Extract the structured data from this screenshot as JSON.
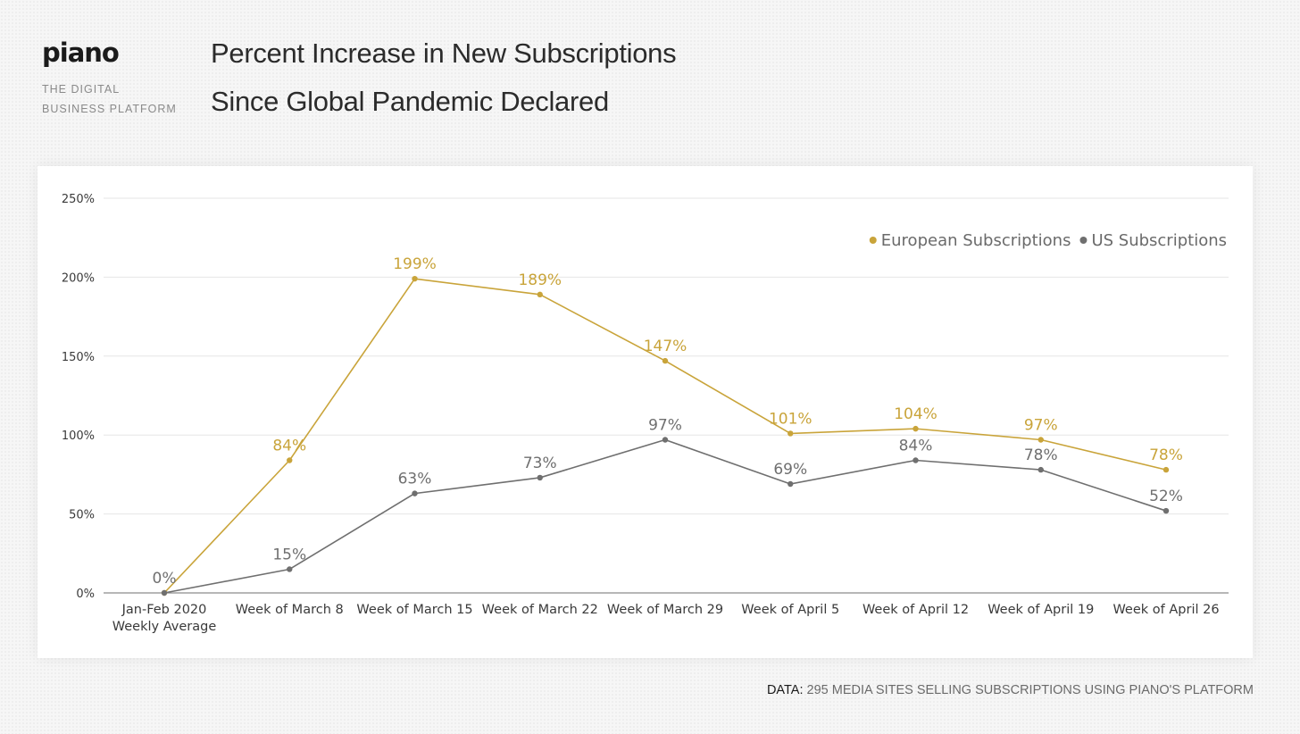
{
  "brand": {
    "logo": "piano",
    "tagline_line1": "THE DIGITAL",
    "tagline_line2": "BUSINESS PLATFORM"
  },
  "title_line1": "Percent Increase in New Subscriptions",
  "title_line2": "Since Global Pandemic Declared",
  "footer": {
    "label": "DATA:",
    "text": "295 MEDIA SITES SELLING SUBSCRIPTIONS USING PIANO'S PLATFORM"
  },
  "chart_data": {
    "type": "line",
    "categories": [
      [
        "Jan-Feb 2020",
        "Weekly Average"
      ],
      [
        "Week of March 8"
      ],
      [
        "Week of March 15"
      ],
      [
        "Week of March 22"
      ],
      [
        "Week of March 29"
      ],
      [
        "Week of April 5"
      ],
      [
        "Week of April 12"
      ],
      [
        "Week of April 19"
      ],
      [
        "Week of April 26"
      ]
    ],
    "y_ticks": [
      0,
      50,
      100,
      150,
      200,
      250
    ],
    "y_tick_suffix": "%",
    "ylim": [
      0,
      250
    ],
    "grid": true,
    "legend_position": "top-right",
    "series": [
      {
        "name": "European Subscriptions",
        "color": "#c9a43a",
        "values": [
          0,
          84,
          199,
          189,
          147,
          101,
          104,
          97,
          78
        ],
        "labels": [
          null,
          "84%",
          "199%",
          "189%",
          "147%",
          "101%",
          "104%",
          "97%",
          "78%"
        ]
      },
      {
        "name": "US Subscriptions",
        "color": "#6f6f6f",
        "values": [
          0,
          15,
          63,
          73,
          97,
          69,
          84,
          78,
          52
        ],
        "labels": [
          "0%",
          "15%",
          "63%",
          "73%",
          "97%",
          "69%",
          "84%",
          "78%",
          "52%"
        ]
      }
    ]
  }
}
